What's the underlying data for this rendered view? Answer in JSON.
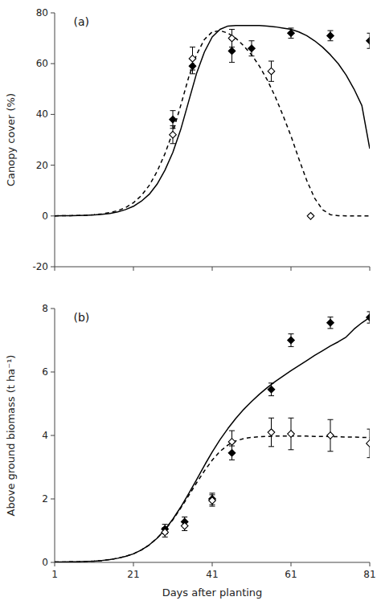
{
  "chart_data": [
    {
      "type": "line",
      "title": "(a)",
      "y_label": "Canopy cover (%)",
      "xlim": [
        1,
        81
      ],
      "xticks": [
        1,
        21,
        41,
        61,
        81
      ],
      "ylim": [
        -20,
        80
      ],
      "yticks": [
        -20,
        0,
        20,
        40,
        60,
        80
      ],
      "tick_labels": "y",
      "series": [
        {
          "type": "line",
          "line_style": "solid",
          "color": "black",
          "x": [
            1,
            3,
            5,
            7,
            9,
            11,
            13,
            15,
            17,
            19,
            21,
            23,
            25,
            27,
            29,
            31,
            33,
            35,
            37,
            39,
            41,
            43,
            45,
            47,
            49,
            51,
            53,
            55,
            57,
            59,
            61,
            63,
            65,
            67,
            69,
            71,
            73,
            75,
            77,
            79,
            81
          ],
          "values": [
            0.05,
            0.08,
            0.12,
            0.18,
            0.28,
            0.42,
            0.65,
            1.0,
            1.6,
            2.5,
            3.8,
            5.8,
            8.5,
            12.5,
            18.0,
            25.0,
            34.0,
            45.0,
            56.0,
            64.5,
            70.5,
            73.5,
            74.8,
            75.0,
            75.0,
            75.0,
            75.0,
            74.8,
            74.5,
            74.0,
            73.5,
            72.5,
            71.0,
            69.0,
            66.5,
            63.5,
            60.0,
            55.5,
            50.0,
            43.5,
            26.5
          ]
        },
        {
          "type": "line",
          "line_style": "dashed",
          "color": "black",
          "x": [
            1,
            3,
            5,
            7,
            9,
            11,
            13,
            15,
            17,
            19,
            21,
            23,
            25,
            27,
            29,
            31,
            33,
            35,
            37,
            39,
            41,
            43,
            45,
            47,
            49,
            51,
            53,
            55,
            57,
            59,
            61,
            63,
            65,
            67,
            69,
            71,
            73,
            75,
            77,
            79,
            81
          ],
          "values": [
            0.05,
            0.08,
            0.12,
            0.2,
            0.32,
            0.52,
            0.82,
            1.3,
            2.1,
            3.3,
            5.2,
            8.0,
            12.0,
            17.5,
            24.5,
            33.0,
            43.5,
            54.5,
            63.5,
            69.5,
            72.5,
            73.0,
            72.0,
            70.0,
            67.0,
            63.5,
            59.0,
            53.5,
            47.0,
            39.5,
            31.5,
            22.5,
            14.0,
            7.0,
            2.5,
            0.5,
            0.1,
            0.05,
            0.02,
            0.01,
            0.01
          ]
        },
        {
          "type": "scatter",
          "marker": "diamond",
          "color": "black",
          "x": [
            31,
            36,
            46,
            51,
            61,
            71,
            81
          ],
          "values": [
            38,
            59,
            65,
            66,
            72,
            71,
            69
          ],
          "errors": [
            3.5,
            3.0,
            4.5,
            3.0,
            2.0,
            2.0,
            3.0
          ]
        },
        {
          "type": "scatter",
          "marker": "diamond-open",
          "color": "black",
          "x": [
            31,
            36,
            46,
            56,
            66
          ],
          "values": [
            32,
            62,
            70,
            57,
            0
          ],
          "errors": [
            3.5,
            4.5,
            3.5,
            4.0,
            0.5
          ]
        }
      ]
    },
    {
      "type": "line",
      "title": "(b)",
      "y_label": "Above ground biomass (t ha⁻¹)",
      "x_label": "Days after planting",
      "xlim": [
        1,
        81
      ],
      "xticks": [
        1,
        21,
        41,
        61,
        81
      ],
      "ylim": [
        0,
        8
      ],
      "yticks": [
        0,
        2,
        4,
        6,
        8
      ],
      "series": [
        {
          "type": "line",
          "line_style": "solid",
          "color": "black",
          "x": [
            1,
            3,
            5,
            7,
            9,
            11,
            13,
            15,
            17,
            19,
            21,
            23,
            25,
            27,
            29,
            31,
            33,
            35,
            37,
            39,
            41,
            43,
            45,
            47,
            49,
            51,
            53,
            55,
            57,
            59,
            61,
            63,
            65,
            67,
            69,
            71,
            73,
            75,
            77,
            79,
            81
          ],
          "values": [
            0.01,
            0.01,
            0.02,
            0.02,
            0.03,
            0.04,
            0.06,
            0.09,
            0.13,
            0.19,
            0.27,
            0.39,
            0.55,
            0.76,
            1.03,
            1.36,
            1.74,
            2.16,
            2.6,
            3.05,
            3.48,
            3.87,
            4.22,
            4.54,
            4.82,
            5.07,
            5.3,
            5.51,
            5.7,
            5.87,
            6.04,
            6.2,
            6.36,
            6.52,
            6.67,
            6.82,
            6.95,
            7.1,
            7.35,
            7.55,
            7.72
          ]
        },
        {
          "type": "line",
          "line_style": "dashed",
          "color": "black",
          "x": [
            1,
            3,
            5,
            7,
            9,
            11,
            13,
            15,
            17,
            19,
            21,
            23,
            25,
            27,
            29,
            31,
            33,
            35,
            37,
            39,
            41,
            43,
            45,
            47,
            49,
            51,
            53,
            55,
            57,
            59,
            61,
            63,
            65,
            67,
            69,
            71,
            73,
            75,
            77,
            79,
            81
          ],
          "values": [
            0.01,
            0.01,
            0.02,
            0.02,
            0.03,
            0.04,
            0.06,
            0.09,
            0.13,
            0.19,
            0.27,
            0.39,
            0.55,
            0.76,
            1.02,
            1.34,
            1.71,
            2.1,
            2.5,
            2.88,
            3.22,
            3.5,
            3.7,
            3.83,
            3.9,
            3.94,
            3.96,
            3.97,
            3.98,
            3.98,
            3.98,
            3.98,
            3.98,
            3.97,
            3.97,
            3.96,
            3.96,
            3.95,
            3.95,
            3.94,
            3.93
          ]
        },
        {
          "type": "scatter",
          "marker": "diamond",
          "color": "black",
          "x": [
            29,
            34,
            41,
            46,
            56,
            61,
            71,
            81
          ],
          "values": [
            1.05,
            1.28,
            2.0,
            3.45,
            5.45,
            7.0,
            7.55,
            7.72
          ],
          "errors": [
            0.15,
            0.15,
            0.18,
            0.22,
            0.2,
            0.2,
            0.18,
            0.18
          ]
        },
        {
          "type": "scatter",
          "marker": "diamond-open",
          "color": "black",
          "x": [
            29,
            34,
            41,
            46,
            56,
            61,
            71,
            81
          ],
          "values": [
            0.95,
            1.15,
            1.95,
            3.8,
            4.1,
            4.05,
            4.0,
            3.75
          ],
          "errors": [
            0.15,
            0.15,
            0.18,
            0.35,
            0.45,
            0.5,
            0.5,
            0.45
          ]
        }
      ]
    }
  ]
}
